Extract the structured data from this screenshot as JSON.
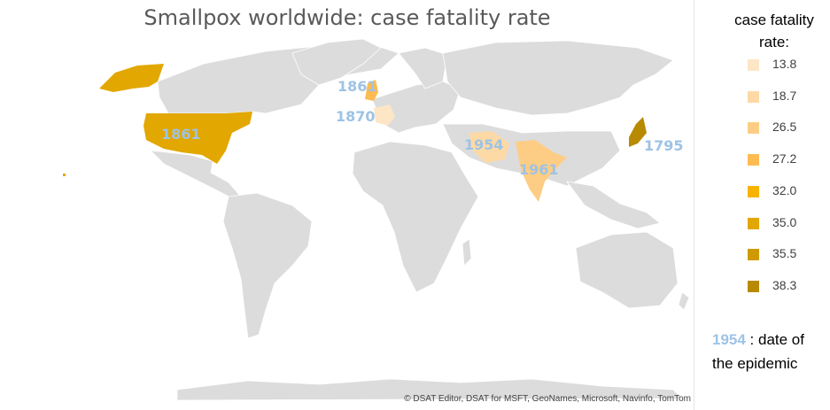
{
  "title": "Smallpox worldwide: case fatality rate",
  "credits": "© DSAT Editor, DSAT for MSFT, GeoNames, Microsoft, Navinfo, TomTom",
  "legend": {
    "title_line1": "case fatality",
    "title_line2": "rate:",
    "items": [
      {
        "label": "13.8",
        "color": "#fde6c6"
      },
      {
        "label": "18.7",
        "color": "#fdd9a6"
      },
      {
        "label": "26.5",
        "color": "#fdcd85"
      },
      {
        "label": "27.2",
        "color": "#fdbb52"
      },
      {
        "label": "32.0",
        "color": "#f7b300"
      },
      {
        "label": "35.0",
        "color": "#e2a700"
      },
      {
        "label": "35.5",
        "color": "#cf9a00"
      },
      {
        "label": "38.3",
        "color": "#b88a00"
      }
    ],
    "note_year": "1954",
    "note_text": " : date of the epidemic"
  },
  "regions": [
    {
      "name": "United States",
      "fatality_rate": 35.0,
      "year": "1861"
    },
    {
      "name": "United Kingdom",
      "fatality_rate": 27.2,
      "year": "1861"
    },
    {
      "name": "France",
      "fatality_rate": 13.8,
      "year": "1870"
    },
    {
      "name": "Iran",
      "fatality_rate": 18.7,
      "year": "1954"
    },
    {
      "name": "India",
      "fatality_rate": 26.5,
      "year": "1961"
    },
    {
      "name": "Japan",
      "fatality_rate": 38.3,
      "year": "1795"
    }
  ],
  "colors": {
    "land": "#dcdcdc",
    "highlight_label": "#9dc3e6"
  }
}
